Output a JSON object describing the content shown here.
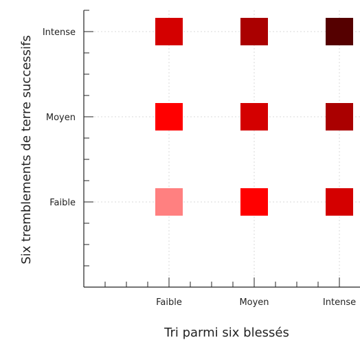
{
  "chart_data": {
    "type": "heatmap",
    "xlabel": "Tri parmi six blessés",
    "ylabel": "Six tremblements de terre successifs",
    "x_categories": [
      "Faible",
      "Moyen",
      "Intense"
    ],
    "y_categories": [
      "Faible",
      "Moyen",
      "Intense"
    ],
    "grid": true,
    "legend": "none",
    "colors": {
      "axis": "#222222",
      "grid": "#d9d9d9"
    },
    "cells": [
      {
        "x": "Faible",
        "y": "Faible",
        "color": "#ff8080"
      },
      {
        "x": "Moyen",
        "y": "Faible",
        "color": "#ff0000"
      },
      {
        "x": "Intense",
        "y": "Faible",
        "color": "#d40000"
      },
      {
        "x": "Faible",
        "y": "Moyen",
        "color": "#ff0000"
      },
      {
        "x": "Moyen",
        "y": "Moyen",
        "color": "#d40000"
      },
      {
        "x": "Intense",
        "y": "Moyen",
        "color": "#aa0000"
      },
      {
        "x": "Faible",
        "y": "Intense",
        "color": "#d40000"
      },
      {
        "x": "Moyen",
        "y": "Intense",
        "color": "#aa0000"
      },
      {
        "x": "Intense",
        "y": "Intense",
        "color": "#550000"
      }
    ]
  }
}
